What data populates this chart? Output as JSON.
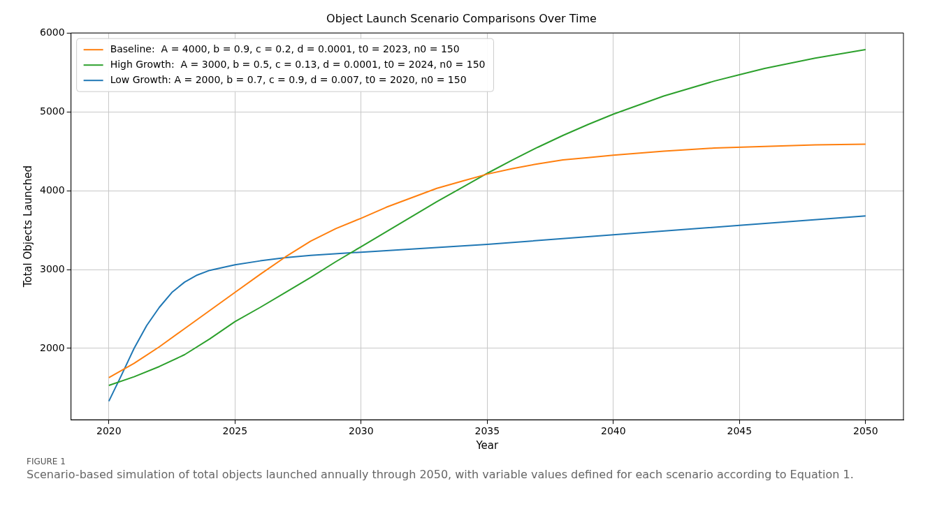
{
  "chart_data": {
    "type": "line",
    "title": "Object Launch Scenario Comparisons Over Time",
    "xlabel": "Year",
    "ylabel": "Total Objects Launched",
    "xlim": [
      2018.5,
      2051.5
    ],
    "xticks": [
      2020,
      2025,
      2030,
      2035,
      2040,
      2045,
      2050
    ],
    "ylim": [
      1095,
      6000
    ],
    "yticks": [
      2000,
      3000,
      4000,
      5000,
      6000
    ],
    "grid": true,
    "legend": "top left",
    "marker": "none",
    "line_style": "solid",
    "series": [
      {
        "name": "Baseline:  A = 4000, b = 0.9, c = 0.2, d = 0.0001, t0 = 2023, n0 = 150",
        "color": "#ff7f0e",
        "x": [
          2020,
          2021,
          2022,
          2023,
          2024,
          2025,
          2026,
          2027,
          2028,
          2029,
          2030,
          2031,
          2032,
          2033,
          2034,
          2035,
          2036,
          2037,
          2038,
          2039,
          2040,
          2042,
          2044,
          2046,
          2048,
          2050
        ],
        "values": [
          1630,
          1810,
          2020,
          2250,
          2480,
          2710,
          2940,
          3160,
          3360,
          3520,
          3650,
          3790,
          3910,
          4030,
          4120,
          4210,
          4280,
          4340,
          4390,
          4420,
          4450,
          4500,
          4540,
          4560,
          4580,
          4590
        ]
      },
      {
        "name": "High Growth:  A = 3000, b = 0.5, c = 0.13, d = 0.0001, t0 = 2024, n0 = 150",
        "color": "#2ca02c",
        "x": [
          2020,
          2021,
          2022,
          2023,
          2024,
          2025,
          2026,
          2027,
          2028,
          2029,
          2030,
          2031,
          2032,
          2033,
          2034,
          2035,
          2036,
          2037,
          2038,
          2039,
          2040,
          2042,
          2044,
          2045,
          2046,
          2048,
          2050
        ],
        "values": [
          1530,
          1640,
          1770,
          1920,
          2120,
          2340,
          2520,
          2710,
          2900,
          3100,
          3290,
          3480,
          3670,
          3860,
          4040,
          4220,
          4390,
          4550,
          4700,
          4840,
          4970,
          5200,
          5390,
          5470,
          5550,
          5680,
          5790
        ]
      },
      {
        "name": "Low Growth: A = 2000, b = 0.7, c = 0.9, d = 0.007, t0 = 2020, n0 = 150",
        "color": "#1f77b4",
        "x": [
          2020,
          2020.5,
          2021,
          2021.5,
          2022,
          2022.5,
          2023,
          2023.5,
          2024,
          2025,
          2026,
          2027,
          2028,
          2030,
          2035,
          2040,
          2045,
          2050
        ],
        "values": [
          1330,
          1660,
          2000,
          2290,
          2520,
          2710,
          2840,
          2930,
          2990,
          3060,
          3110,
          3150,
          3180,
          3220,
          3320,
          3440,
          3560,
          3680
        ]
      }
    ],
    "annotations": [
      "FIGURE 1",
      "Scenario-based simulation of total objects launched annually through 2050, with variable values defined for each scenario according to Equation 1."
    ]
  }
}
